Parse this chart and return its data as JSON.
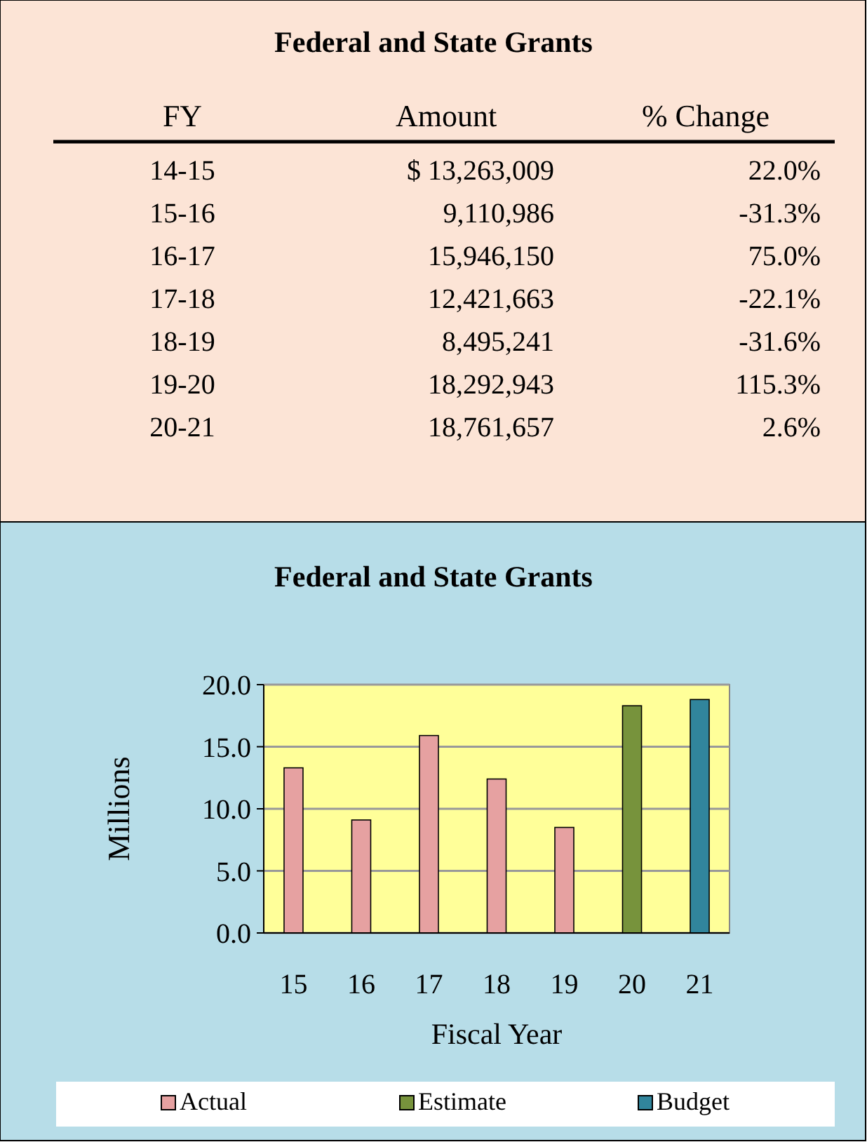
{
  "chart_data": [
    {
      "type": "other",
      "title": "Federal and State Grants",
      "xlabel": "FY",
      "categories": [
        "14-15",
        "15-16",
        "16-17",
        "17-18",
        "18-19",
        "19-20",
        "20-21"
      ],
      "series": [
        {
          "name": "Amount",
          "values": [
            13263009,
            9110986,
            15946150,
            12421663,
            8495241,
            18292943,
            18761657
          ],
          "value_labels": [
            "$ 13,263,009",
            "9,110,986",
            "15,946,150",
            "12,421,663",
            "8,495,241",
            "18,292,943",
            "18,761,657"
          ]
        },
        {
          "name": "% Change",
          "values": [
            22.0,
            -31.3,
            75.0,
            -22.1,
            -31.6,
            115.3,
            2.6
          ],
          "value_labels": [
            "22.0%",
            "-31.3%",
            "75.0%",
            "-22.1%",
            "-31.6%",
            "115.3%",
            "2.6%"
          ]
        }
      ]
    },
    {
      "type": "bar",
      "title": "Federal and State Grants",
      "xlabel": "Fiscal Year",
      "ylabel": "Millions",
      "categories": [
        "15",
        "16",
        "17",
        "18",
        "19",
        "20",
        "21"
      ],
      "stacked": true,
      "series": [
        {
          "name": "Actual",
          "color": "#e6a1a1",
          "values": [
            13.3,
            9.1,
            15.9,
            12.4,
            8.5,
            null,
            null
          ]
        },
        {
          "name": "Estimate",
          "color": "#77933c",
          "values": [
            null,
            null,
            null,
            null,
            null,
            18.3,
            null
          ]
        },
        {
          "name": "Budget",
          "color": "#31859c",
          "values": [
            null,
            null,
            null,
            null,
            null,
            null,
            18.8
          ]
        }
      ],
      "ylim": [
        0,
        20
      ],
      "yticks": [
        {
          "value": 0,
          "label": "0.0"
        },
        {
          "value": 5,
          "label": "5.0"
        },
        {
          "value": 10,
          "label": "10.0"
        },
        {
          "value": 15,
          "label": "15.0"
        },
        {
          "value": 20,
          "label": "20.0"
        }
      ],
      "grid": "y",
      "legend": "bottom"
    }
  ]
}
